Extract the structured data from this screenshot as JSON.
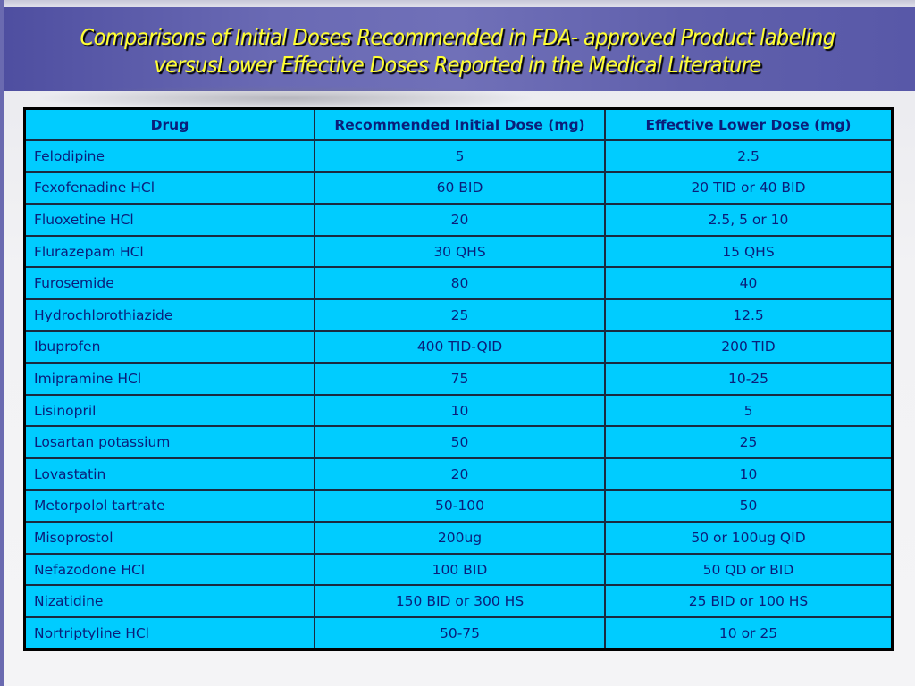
{
  "title": {
    "line1": "Comparisons of Initial Doses Recommended in FDA- approved Product labeling",
    "line2": "versusLower Effective Doses Reported in the Medical Literature"
  },
  "table": {
    "headers": [
      "Drug",
      "Recommended Initial Dose (mg)",
      "Effective Lower Dose (mg)"
    ],
    "rows": [
      [
        "Felodipine",
        "5",
        "2.5"
      ],
      [
        "Fexofenadine HCl",
        "60 BID",
        "20 TID or 40 BID"
      ],
      [
        "Fluoxetine HCl",
        "20",
        "2.5, 5 or 10"
      ],
      [
        "Flurazepam HCl",
        "30 QHS",
        "15 QHS"
      ],
      [
        "Furosemide",
        "80",
        "40"
      ],
      [
        "Hydrochlorothiazide",
        "25",
        "12.5"
      ],
      [
        "Ibuprofen",
        "400 TID-QID",
        "200 TID"
      ],
      [
        "Imipramine HCl",
        "75",
        "10-25"
      ],
      [
        "Lisinopril",
        "10",
        "5"
      ],
      [
        "Losartan potassium",
        "50",
        "25"
      ],
      [
        "Lovastatin",
        "20",
        "10"
      ],
      [
        "Metorpolol tartrate",
        "50-100",
        "50"
      ],
      [
        "Misoprostol",
        "200ug",
        "50 or 100ug QID"
      ],
      [
        "Nefazodone HCl",
        "100 BID",
        "50 QD or BID"
      ],
      [
        "Nizatidine",
        "150 BID or 300 HS",
        "25 BID or 100 HS"
      ],
      [
        "Nortriptyline HCl",
        "50-75",
        "10 or 25"
      ]
    ]
  }
}
